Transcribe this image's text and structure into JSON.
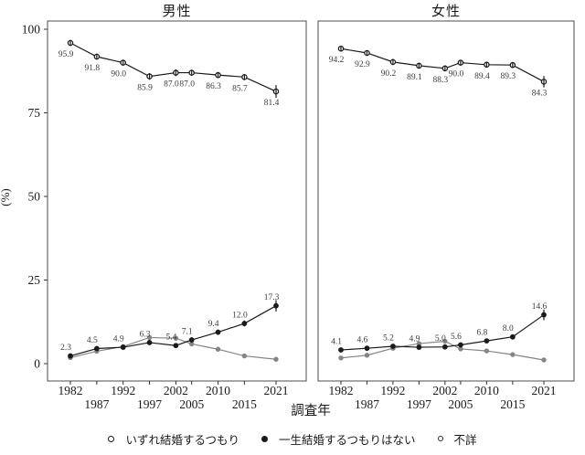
{
  "figure": {
    "background": "#ffffff",
    "facet_titles": [
      "男性",
      "女性"
    ],
    "xlabel": "調査年",
    "ylabel": "(%)",
    "legend": [
      {
        "label": "いずれ結婚するつもり",
        "marker": "open-circle"
      },
      {
        "label": "一生結婚するつもりはない",
        "marker": "filled-circle"
      },
      {
        "label": "不詳",
        "marker": "small-open-circle"
      }
    ]
  },
  "chart_data": {
    "type": "line",
    "title": "",
    "xlabel": "調査年",
    "ylabel": "(%)",
    "ylim": [
      0,
      100
    ],
    "yticks": [
      0,
      25,
      50,
      75,
      100
    ],
    "x": [
      1982,
      1987,
      1992,
      1997,
      2002,
      2005,
      2010,
      2015,
      2021
    ],
    "x_tick_row1": [
      1982,
      1992,
      2002,
      2010,
      2021
    ],
    "x_tick_row2": [
      1987,
      1997,
      2005,
      2015
    ],
    "grid": "off",
    "legend_position": "bottom",
    "error_bars": true,
    "colors": {
      "primary": "#1a1a1a",
      "secondary": "#858585",
      "data_label": "#3d3d3d",
      "panel_border": "#4d4d4d"
    },
    "facets": [
      {
        "title": "男性",
        "series": [
          {
            "name": "不詳",
            "marker": "gray-filled-circle",
            "color": "#858585",
            "labeled": false,
            "values": [
              1.8,
              3.7,
              5.1,
              7.8,
              7.6,
              5.9,
              4.3,
              2.3,
              1.3
            ],
            "err": [
              0.4,
              0.5,
              0.6,
              0.7,
              0.7,
              0.6,
              0.5,
              0.4,
              0.4
            ]
          },
          {
            "name": "いずれ結婚するつもり",
            "marker": "open-circle",
            "color": "#1a1a1a",
            "labeled": true,
            "label_side": "below",
            "values": [
              95.9,
              91.8,
              90.0,
              85.9,
              87.0,
              87.0,
              86.3,
              85.7,
              81.4
            ],
            "err": [
              0.9,
              0.9,
              0.9,
              1.0,
              1.0,
              0.9,
              0.9,
              0.9,
              1.9
            ]
          },
          {
            "name": "一生結婚するつもりはない",
            "marker": "filled-circle",
            "color": "#1a1a1a",
            "labeled": true,
            "label_side": "above",
            "values": [
              2.3,
              4.5,
              4.9,
              6.3,
              5.4,
              7.1,
              9.4,
              12.0,
              17.3
            ],
            "err": [
              0.5,
              0.6,
              0.6,
              0.7,
              0.7,
              0.8,
              0.8,
              0.9,
              1.7
            ]
          }
        ]
      },
      {
        "title": "女性",
        "series": [
          {
            "name": "不詳",
            "marker": "gray-filled-circle",
            "color": "#858585",
            "labeled": false,
            "values": [
              1.7,
              2.5,
              4.6,
              6.0,
              6.7,
              4.4,
              3.8,
              2.7,
              1.1
            ],
            "err": [
              0.4,
              0.4,
              0.6,
              0.7,
              0.7,
              0.6,
              0.5,
              0.4,
              0.3
            ]
          },
          {
            "name": "いずれ結婚するつもり",
            "marker": "open-circle",
            "color": "#1a1a1a",
            "labeled": true,
            "label_side": "below",
            "values": [
              94.2,
              92.9,
              90.2,
              89.1,
              88.3,
              90.0,
              89.4,
              89.3,
              84.3
            ],
            "err": [
              0.8,
              0.8,
              0.9,
              0.9,
              0.9,
              0.9,
              0.9,
              0.9,
              1.7
            ]
          },
          {
            "name": "一生結婚するつもりはない",
            "marker": "filled-circle",
            "color": "#1a1a1a",
            "labeled": true,
            "label_side": "above",
            "values": [
              4.1,
              4.6,
              5.2,
              4.9,
              5.0,
              5.6,
              6.8,
              8.0,
              14.6
            ],
            "err": [
              0.7,
              0.7,
              0.7,
              0.6,
              0.6,
              0.7,
              0.7,
              0.8,
              1.6
            ]
          }
        ]
      }
    ]
  }
}
